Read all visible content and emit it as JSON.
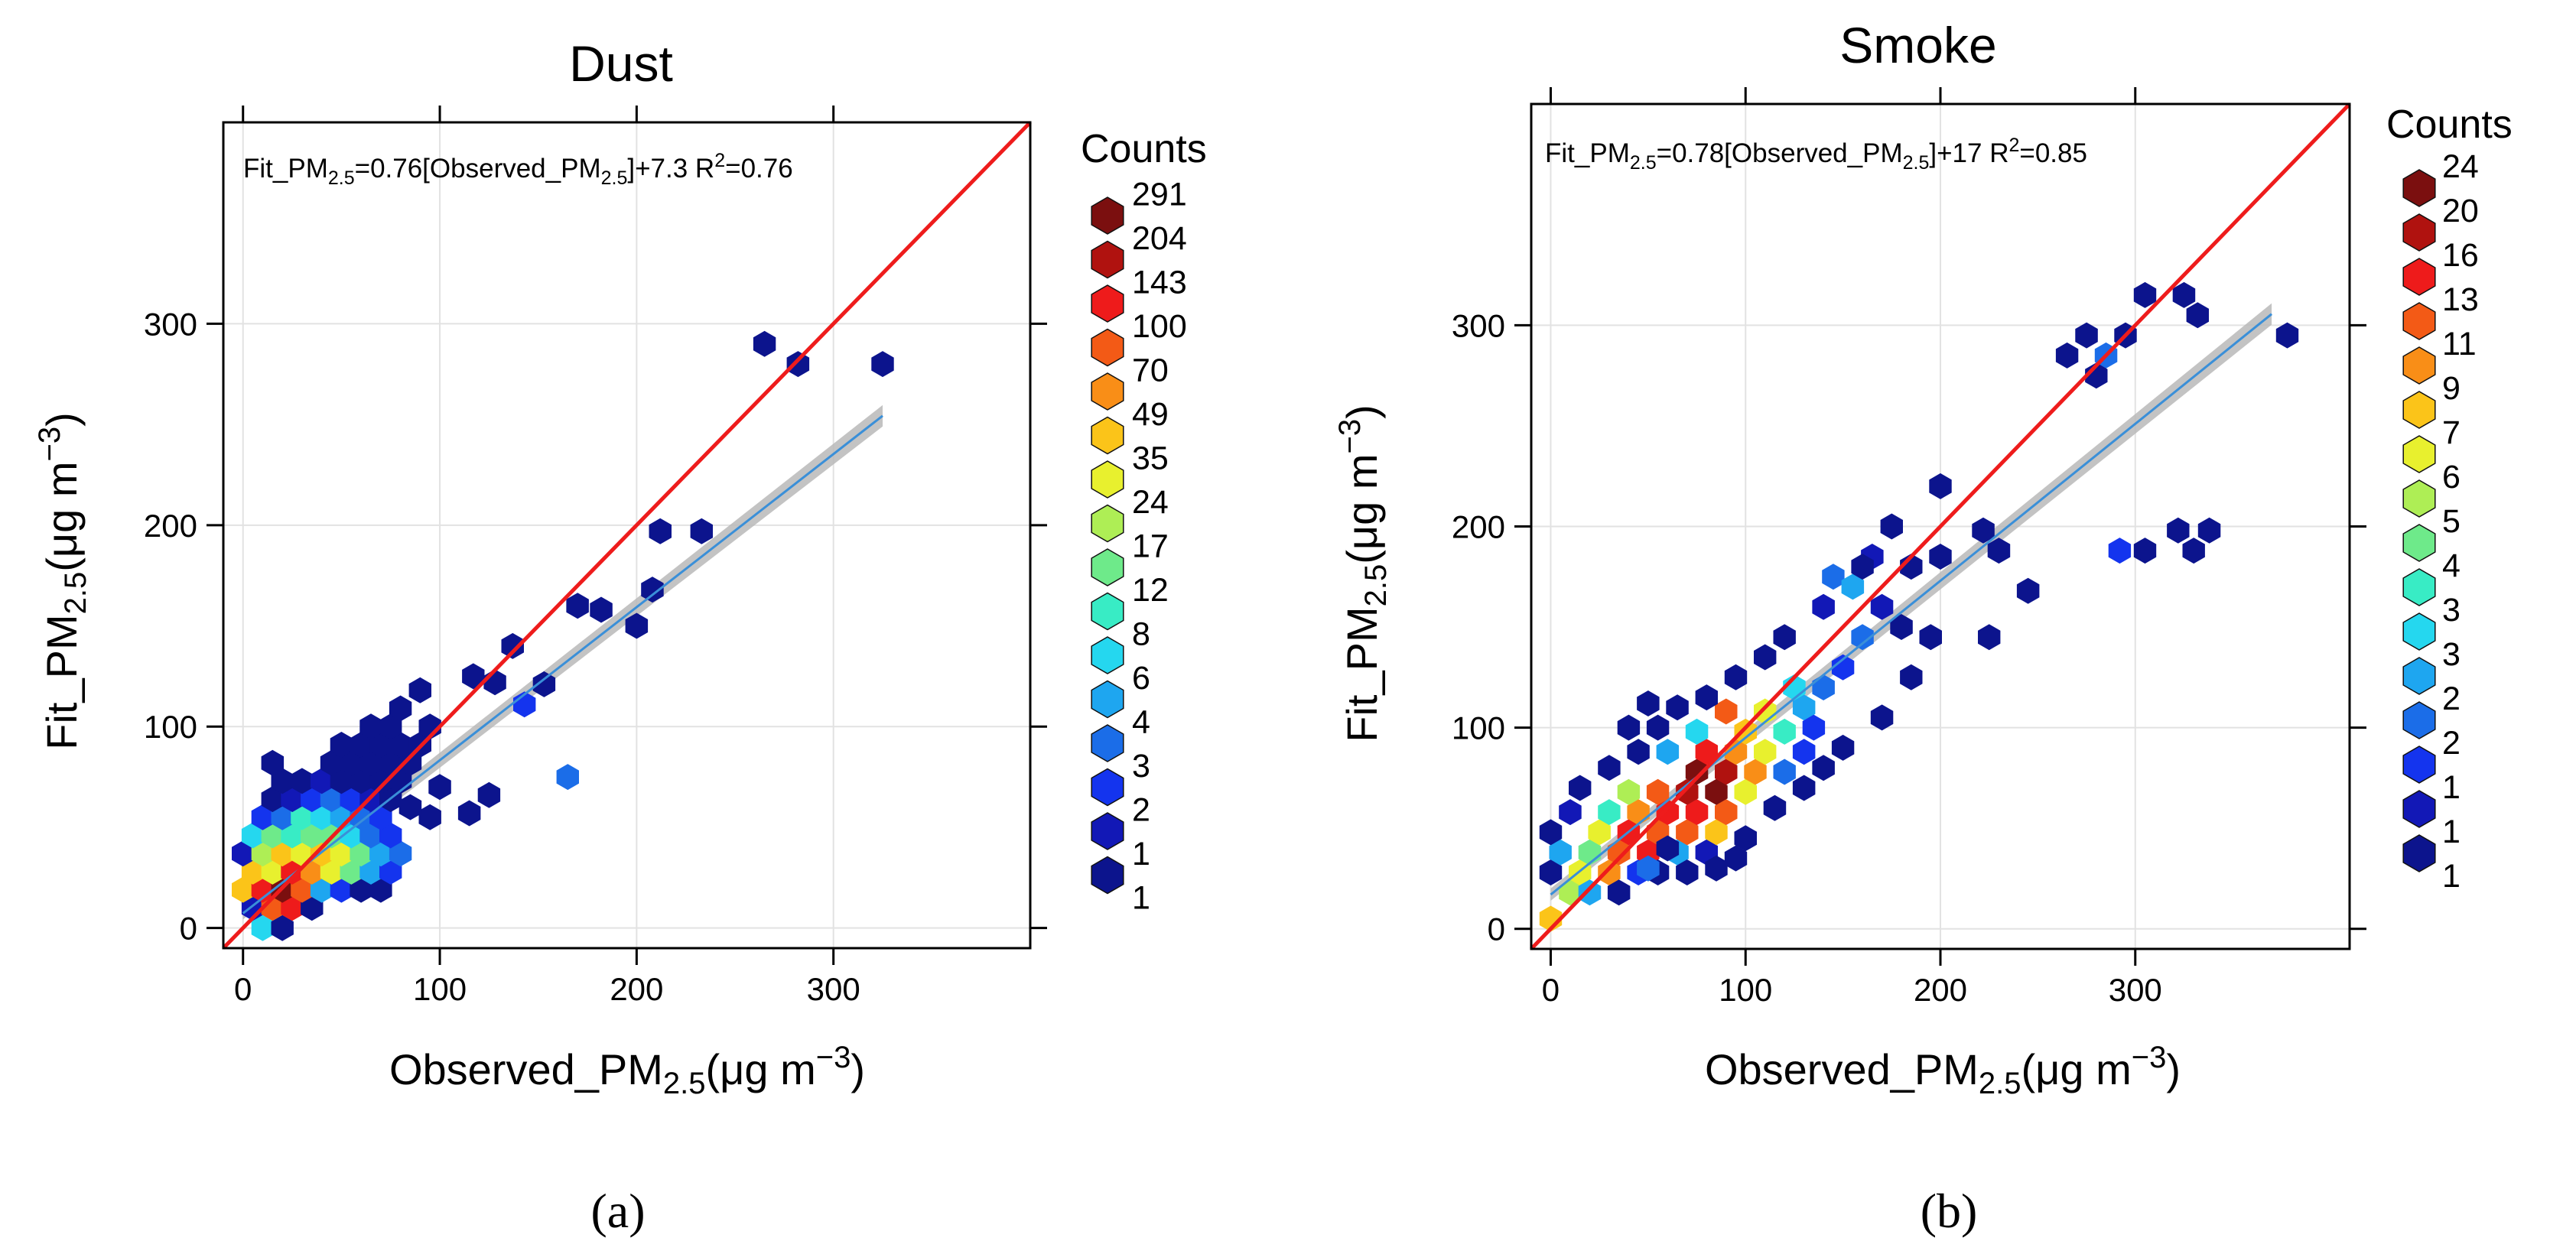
{
  "chart_data": [
    {
      "type": "heatmap",
      "panel_label": "(a)",
      "title": "Dust",
      "xlabel": {
        "pre": "Observed_PM",
        "sub": "2.5",
        "post": "(μg m",
        "sup": "−3",
        "close": ")"
      },
      "ylabel": {
        "pre": "Fit_PM",
        "sub": "2.5",
        "post": "(μg m",
        "sup": "−3",
        "close": ")"
      },
      "fit_text": {
        "a": "Fit_PM",
        "a_sub": "2.5",
        "b": "=0.76[Observed_PM",
        "b_sub": "2.5",
        "c": "]+7.3 R",
        "c_sup": "2",
        "d": "=0.76"
      },
      "xlim": [
        -10,
        400
      ],
      "ylim": [
        -10,
        400
      ],
      "xticks": [
        0,
        100,
        200,
        300
      ],
      "yticks": [
        0,
        100,
        200,
        300
      ],
      "grid": true,
      "identity_line_color": "#ee1c1c",
      "regression": {
        "slope": 0.76,
        "intercept": 7.3,
        "x_range": [
          0,
          325
        ],
        "color": "#3a8fd8",
        "ci_color": "#b8b8b8"
      },
      "legend": {
        "title": "Counts",
        "position": "right",
        "labels": [
          "291",
          "204",
          "143",
          "100",
          "70",
          "49",
          "35",
          "24",
          "17",
          "12",
          "8",
          "6",
          "4",
          "3",
          "2",
          "1",
          "1"
        ]
      },
      "colors": [
        "#7b0f0f",
        "#b0120f",
        "#ee1b1b",
        "#f35a16",
        "#f98e17",
        "#fbc419",
        "#e8f02e",
        "#aeee55",
        "#6eea8a",
        "#38ecc5",
        "#25d7ef",
        "#1ea6f0",
        "#1b6de8",
        "#1434ee",
        "#1218b6",
        "#0c148d"
      ],
      "hexbins": [
        {
          "x": 265,
          "y": 290,
          "c": 15
        },
        {
          "x": 282,
          "y": 280,
          "c": 15
        },
        {
          "x": 325,
          "y": 280,
          "c": 15
        },
        {
          "x": 212,
          "y": 197,
          "c": 15
        },
        {
          "x": 233,
          "y": 197,
          "c": 15
        },
        {
          "x": 208,
          "y": 168,
          "c": 15
        },
        {
          "x": 170,
          "y": 160,
          "c": 15
        },
        {
          "x": 182,
          "y": 158,
          "c": 15
        },
        {
          "x": 200,
          "y": 150,
          "c": 15
        },
        {
          "x": 137,
          "y": 140,
          "c": 15
        },
        {
          "x": 117,
          "y": 125,
          "c": 15
        },
        {
          "x": 128,
          "y": 122,
          "c": 15
        },
        {
          "x": 143,
          "y": 111,
          "c": 13
        },
        {
          "x": 153,
          "y": 121,
          "c": 15
        },
        {
          "x": 165,
          "y": 75,
          "c": 12
        },
        {
          "x": 125,
          "y": 66,
          "c": 15
        },
        {
          "x": 95,
          "y": 55,
          "c": 15
        },
        {
          "x": 115,
          "y": 57,
          "c": 15
        },
        {
          "x": 100,
          "y": 70,
          "c": 15
        },
        {
          "x": 85,
          "y": 60,
          "c": 15
        },
        {
          "x": 10,
          "y": 0,
          "c": 10
        },
        {
          "x": 20,
          "y": 0,
          "c": 15
        },
        {
          "x": 5,
          "y": 10,
          "c": 14
        },
        {
          "x": 15,
          "y": 10,
          "c": 3
        },
        {
          "x": 25,
          "y": 10,
          "c": 2
        },
        {
          "x": 35,
          "y": 10,
          "c": 15
        },
        {
          "x": 0,
          "y": 19,
          "c": 5
        },
        {
          "x": 10,
          "y": 19,
          "c": 2
        },
        {
          "x": 20,
          "y": 19,
          "c": 0
        },
        {
          "x": 30,
          "y": 19,
          "c": 3
        },
        {
          "x": 40,
          "y": 19,
          "c": 11
        },
        {
          "x": 50,
          "y": 19,
          "c": 13
        },
        {
          "x": 60,
          "y": 19,
          "c": 15
        },
        {
          "x": 70,
          "y": 19,
          "c": 15
        },
        {
          "x": 5,
          "y": 28,
          "c": 5
        },
        {
          "x": 15,
          "y": 28,
          "c": 6
        },
        {
          "x": 25,
          "y": 28,
          "c": 2
        },
        {
          "x": 35,
          "y": 28,
          "c": 4
        },
        {
          "x": 45,
          "y": 28,
          "c": 6
        },
        {
          "x": 55,
          "y": 28,
          "c": 8
        },
        {
          "x": 65,
          "y": 28,
          "c": 11
        },
        {
          "x": 75,
          "y": 28,
          "c": 13
        },
        {
          "x": 0,
          "y": 37,
          "c": 14
        },
        {
          "x": 10,
          "y": 37,
          "c": 7
        },
        {
          "x": 20,
          "y": 37,
          "c": 5
        },
        {
          "x": 30,
          "y": 37,
          "c": 6
        },
        {
          "x": 40,
          "y": 37,
          "c": 5
        },
        {
          "x": 50,
          "y": 37,
          "c": 6
        },
        {
          "x": 60,
          "y": 37,
          "c": 8
        },
        {
          "x": 70,
          "y": 37,
          "c": 11
        },
        {
          "x": 80,
          "y": 37,
          "c": 12
        },
        {
          "x": 5,
          "y": 46,
          "c": 10
        },
        {
          "x": 15,
          "y": 46,
          "c": 8
        },
        {
          "x": 25,
          "y": 46,
          "c": 9
        },
        {
          "x": 35,
          "y": 46,
          "c": 8
        },
        {
          "x": 45,
          "y": 46,
          "c": 8
        },
        {
          "x": 55,
          "y": 46,
          "c": 10
        },
        {
          "x": 65,
          "y": 46,
          "c": 12
        },
        {
          "x": 75,
          "y": 46,
          "c": 13
        },
        {
          "x": 10,
          "y": 55,
          "c": 13
        },
        {
          "x": 20,
          "y": 55,
          "c": 12
        },
        {
          "x": 30,
          "y": 55,
          "c": 9
        },
        {
          "x": 40,
          "y": 55,
          "c": 10
        },
        {
          "x": 50,
          "y": 55,
          "c": 11
        },
        {
          "x": 60,
          "y": 55,
          "c": 12
        },
        {
          "x": 70,
          "y": 55,
          "c": 13
        },
        {
          "x": 15,
          "y": 64,
          "c": 15
        },
        {
          "x": 25,
          "y": 64,
          "c": 14
        },
        {
          "x": 35,
          "y": 64,
          "c": 13
        },
        {
          "x": 45,
          "y": 64,
          "c": 12
        },
        {
          "x": 55,
          "y": 64,
          "c": 13
        },
        {
          "x": 65,
          "y": 64,
          "c": 14
        },
        {
          "x": 75,
          "y": 64,
          "c": 15
        },
        {
          "x": 20,
          "y": 73,
          "c": 15
        },
        {
          "x": 30,
          "y": 73,
          "c": 15
        },
        {
          "x": 40,
          "y": 73,
          "c": 14
        },
        {
          "x": 50,
          "y": 73,
          "c": 15
        },
        {
          "x": 60,
          "y": 73,
          "c": 15
        },
        {
          "x": 70,
          "y": 73,
          "c": 15
        },
        {
          "x": 80,
          "y": 73,
          "c": 15
        },
        {
          "x": 15,
          "y": 82,
          "c": 15
        },
        {
          "x": 45,
          "y": 82,
          "c": 15
        },
        {
          "x": 55,
          "y": 82,
          "c": 15
        },
        {
          "x": 65,
          "y": 82,
          "c": 15
        },
        {
          "x": 75,
          "y": 82,
          "c": 15
        },
        {
          "x": 85,
          "y": 82,
          "c": 15
        },
        {
          "x": 50,
          "y": 91,
          "c": 15
        },
        {
          "x": 60,
          "y": 91,
          "c": 15
        },
        {
          "x": 70,
          "y": 91,
          "c": 15
        },
        {
          "x": 80,
          "y": 91,
          "c": 15
        },
        {
          "x": 90,
          "y": 91,
          "c": 15
        },
        {
          "x": 65,
          "y": 100,
          "c": 15
        },
        {
          "x": 75,
          "y": 100,
          "c": 15
        },
        {
          "x": 95,
          "y": 100,
          "c": 15
        },
        {
          "x": 80,
          "y": 109,
          "c": 15
        },
        {
          "x": 90,
          "y": 118,
          "c": 15
        }
      ]
    },
    {
      "type": "heatmap",
      "panel_label": "(b)",
      "title": "Smoke",
      "xlabel": {
        "pre": "Observed_PM",
        "sub": "2.5",
        "post": "(μg m",
        "sup": "−3",
        "close": ")"
      },
      "ylabel": {
        "pre": "Fit_PM",
        "sub": "2.5",
        "post": "(μg m",
        "sup": "−3",
        "close": ")"
      },
      "fit_text": {
        "a": "Fit_PM",
        "a_sub": "2.5",
        "b": "=0.78[Observed_PM",
        "b_sub": "2.5",
        "c": "]+17 R",
        "c_sup": "2",
        "d": "=0.85"
      },
      "xlim": [
        -10,
        410
      ],
      "ylim": [
        -10,
        410
      ],
      "xticks": [
        0,
        100,
        200,
        300
      ],
      "yticks": [
        0,
        100,
        200,
        300
      ],
      "grid": true,
      "identity_line_color": "#ee1c1c",
      "regression": {
        "slope": 0.78,
        "intercept": 17,
        "x_range": [
          0,
          370
        ],
        "color": "#3a8fd8",
        "ci_color": "#b8b8b8"
      },
      "legend": {
        "title": "Counts",
        "position": "right",
        "labels": [
          "24",
          "20",
          "16",
          "13",
          "11",
          "9",
          "7",
          "6",
          "5",
          "4",
          "3",
          "3",
          "2",
          "2",
          "1",
          "1",
          "1"
        ]
      },
      "colors": [
        "#7b0f0f",
        "#b0120f",
        "#ee1b1b",
        "#f35a16",
        "#f98e17",
        "#fbc419",
        "#e8f02e",
        "#aeee55",
        "#6eea8a",
        "#38ecc5",
        "#25d7ef",
        "#1ea6f0",
        "#1b6de8",
        "#1434ee",
        "#1218b6",
        "#0c148d"
      ],
      "hexbins": [
        {
          "x": 265,
          "y": 285,
          "c": 15
        },
        {
          "x": 275,
          "y": 295,
          "c": 15
        },
        {
          "x": 285,
          "y": 285,
          "c": 12
        },
        {
          "x": 280,
          "y": 275,
          "c": 15
        },
        {
          "x": 295,
          "y": 295,
          "c": 15
        },
        {
          "x": 305,
          "y": 315,
          "c": 15
        },
        {
          "x": 325,
          "y": 315,
          "c": 15
        },
        {
          "x": 332,
          "y": 305,
          "c": 15
        },
        {
          "x": 378,
          "y": 295,
          "c": 15
        },
        {
          "x": 200,
          "y": 220,
          "c": 15
        },
        {
          "x": 222,
          "y": 198,
          "c": 15
        },
        {
          "x": 230,
          "y": 188,
          "c": 15
        },
        {
          "x": 245,
          "y": 168,
          "c": 15
        },
        {
          "x": 225,
          "y": 145,
          "c": 15
        },
        {
          "x": 292,
          "y": 188,
          "c": 13
        },
        {
          "x": 305,
          "y": 188,
          "c": 15
        },
        {
          "x": 322,
          "y": 198,
          "c": 15
        },
        {
          "x": 330,
          "y": 188,
          "c": 15
        },
        {
          "x": 338,
          "y": 198,
          "c": 15
        },
        {
          "x": 175,
          "y": 200,
          "c": 15
        },
        {
          "x": 185,
          "y": 180,
          "c": 15
        },
        {
          "x": 200,
          "y": 185,
          "c": 15
        },
        {
          "x": 170,
          "y": 160,
          "c": 14
        },
        {
          "x": 180,
          "y": 150,
          "c": 15
        },
        {
          "x": 195,
          "y": 145,
          "c": 15
        },
        {
          "x": 185,
          "y": 125,
          "c": 15
        },
        {
          "x": 160,
          "y": 145,
          "c": 12
        },
        {
          "x": 150,
          "y": 130,
          "c": 13
        },
        {
          "x": 145,
          "y": 175,
          "c": 12
        },
        {
          "x": 165,
          "y": 185,
          "c": 14
        },
        {
          "x": 170,
          "y": 105,
          "c": 15
        },
        {
          "x": 155,
          "y": 170,
          "c": 11
        },
        {
          "x": 160,
          "y": 180,
          "c": 15
        },
        {
          "x": 140,
          "y": 160,
          "c": 14
        },
        {
          "x": 0,
          "y": 5,
          "c": 5
        },
        {
          "x": 0,
          "y": 28,
          "c": 15
        },
        {
          "x": 5,
          "y": 38,
          "c": 11
        },
        {
          "x": 0,
          "y": 48,
          "c": 15
        },
        {
          "x": 10,
          "y": 58,
          "c": 14
        },
        {
          "x": 15,
          "y": 70,
          "c": 15
        },
        {
          "x": 10,
          "y": 18,
          "c": 7
        },
        {
          "x": 15,
          "y": 28,
          "c": 6
        },
        {
          "x": 20,
          "y": 38,
          "c": 8
        },
        {
          "x": 25,
          "y": 48,
          "c": 6
        },
        {
          "x": 30,
          "y": 58,
          "c": 9
        },
        {
          "x": 20,
          "y": 18,
          "c": 11
        },
        {
          "x": 30,
          "y": 28,
          "c": 4
        },
        {
          "x": 35,
          "y": 38,
          "c": 3
        },
        {
          "x": 40,
          "y": 48,
          "c": 2
        },
        {
          "x": 45,
          "y": 58,
          "c": 4
        },
        {
          "x": 40,
          "y": 68,
          "c": 7
        },
        {
          "x": 35,
          "y": 18,
          "c": 15
        },
        {
          "x": 45,
          "y": 28,
          "c": 13
        },
        {
          "x": 50,
          "y": 38,
          "c": 2
        },
        {
          "x": 55,
          "y": 48,
          "c": 3
        },
        {
          "x": 60,
          "y": 58,
          "c": 2
        },
        {
          "x": 55,
          "y": 68,
          "c": 3
        },
        {
          "x": 55,
          "y": 28,
          "c": 15
        },
        {
          "x": 65,
          "y": 38,
          "c": 11
        },
        {
          "x": 70,
          "y": 48,
          "c": 3
        },
        {
          "x": 75,
          "y": 58,
          "c": 2
        },
        {
          "x": 70,
          "y": 68,
          "c": 1
        },
        {
          "x": 75,
          "y": 78,
          "c": 0
        },
        {
          "x": 70,
          "y": 28,
          "c": 15
        },
        {
          "x": 80,
          "y": 38,
          "c": 14
        },
        {
          "x": 85,
          "y": 48,
          "c": 5
        },
        {
          "x": 90,
          "y": 58,
          "c": 3
        },
        {
          "x": 85,
          "y": 68,
          "c": 0
        },
        {
          "x": 90,
          "y": 78,
          "c": 1
        },
        {
          "x": 80,
          "y": 88,
          "c": 2
        },
        {
          "x": 95,
          "y": 88,
          "c": 4
        },
        {
          "x": 100,
          "y": 68,
          "c": 6
        },
        {
          "x": 105,
          "y": 78,
          "c": 4
        },
        {
          "x": 110,
          "y": 88,
          "c": 6
        },
        {
          "x": 100,
          "y": 98,
          "c": 5
        },
        {
          "x": 110,
          "y": 108,
          "c": 6
        },
        {
          "x": 90,
          "y": 108,
          "c": 3
        },
        {
          "x": 75,
          "y": 98,
          "c": 10
        },
        {
          "x": 60,
          "y": 88,
          "c": 11
        },
        {
          "x": 120,
          "y": 98,
          "c": 9
        },
        {
          "x": 120,
          "y": 78,
          "c": 12
        },
        {
          "x": 130,
          "y": 88,
          "c": 13
        },
        {
          "x": 130,
          "y": 110,
          "c": 11
        },
        {
          "x": 140,
          "y": 120,
          "c": 12
        },
        {
          "x": 125,
          "y": 120,
          "c": 10
        },
        {
          "x": 115,
          "y": 60,
          "c": 15
        },
        {
          "x": 130,
          "y": 70,
          "c": 15
        },
        {
          "x": 140,
          "y": 80,
          "c": 15
        },
        {
          "x": 150,
          "y": 90,
          "c": 15
        },
        {
          "x": 135,
          "y": 100,
          "c": 13
        },
        {
          "x": 45,
          "y": 88,
          "c": 15
        },
        {
          "x": 55,
          "y": 100,
          "c": 15
        },
        {
          "x": 65,
          "y": 110,
          "c": 15
        },
        {
          "x": 80,
          "y": 115,
          "c": 15
        },
        {
          "x": 50,
          "y": 112,
          "c": 15
        },
        {
          "x": 95,
          "y": 125,
          "c": 15
        },
        {
          "x": 110,
          "y": 135,
          "c": 15
        },
        {
          "x": 120,
          "y": 145,
          "c": 15
        },
        {
          "x": 40,
          "y": 100,
          "c": 15
        },
        {
          "x": 30,
          "y": 80,
          "c": 15
        },
        {
          "x": 60,
          "y": 40,
          "c": 15
        },
        {
          "x": 50,
          "y": 30,
          "c": 12
        },
        {
          "x": 85,
          "y": 30,
          "c": 15
        },
        {
          "x": 100,
          "y": 45,
          "c": 15
        },
        {
          "x": 95,
          "y": 35,
          "c": 15
        }
      ]
    }
  ]
}
